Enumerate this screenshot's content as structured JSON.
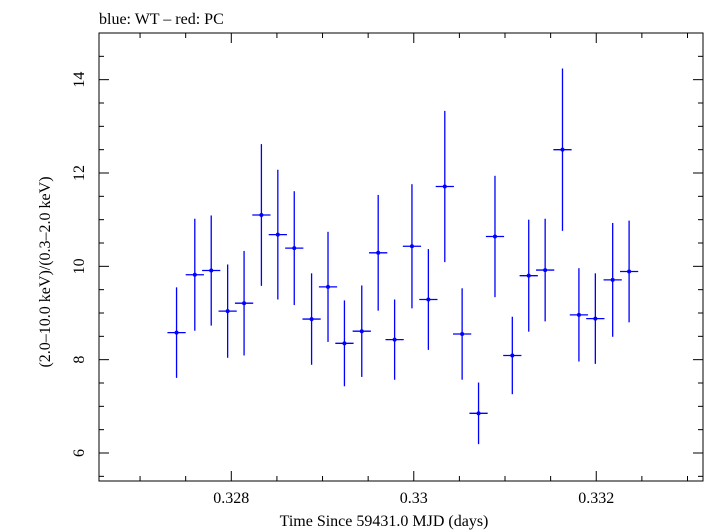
{
  "chart_data": {
    "type": "scatter",
    "title": "blue: WT – red: PC",
    "xlabel": "Time Since 59431.0 MJD (days)",
    "ylabel": "(2.0–10.0 keV)/(0.3–2.0 keV)",
    "xlim": [
      0.32655,
      0.33317
    ],
    "ylim": [
      5.4,
      15.0
    ],
    "x_ticks": [
      0.328,
      0.33,
      0.332
    ],
    "x_tick_labels": [
      "0.328",
      "0.33",
      "0.332"
    ],
    "y_ticks": [
      6,
      8,
      10,
      12,
      14
    ],
    "y_tick_labels": [
      "6",
      "8",
      "10",
      "12",
      "14"
    ],
    "grid": false,
    "series": [
      {
        "color": "#0000ff",
        "x_halfwidth": 0.0001,
        "points": [
          {
            "x": 0.3274,
            "y": 8.58,
            "err": 0.97
          },
          {
            "x": 0.3276,
            "y": 9.82,
            "err": 1.2
          },
          {
            "x": 0.32778,
            "y": 9.91,
            "err": 1.18
          },
          {
            "x": 0.32796,
            "y": 9.04,
            "err": 1.0
          },
          {
            "x": 0.32814,
            "y": 9.21,
            "err": 1.12
          },
          {
            "x": 0.32833,
            "y": 11.1,
            "err": 1.52
          },
          {
            "x": 0.32851,
            "y": 10.68,
            "err": 1.39
          },
          {
            "x": 0.32869,
            "y": 10.39,
            "err": 1.22
          },
          {
            "x": 0.32888,
            "y": 8.87,
            "err": 0.98
          },
          {
            "x": 0.32906,
            "y": 9.56,
            "err": 1.18
          },
          {
            "x": 0.32924,
            "y": 8.35,
            "err": 0.92
          },
          {
            "x": 0.32943,
            "y": 8.61,
            "err": 0.98
          },
          {
            "x": 0.32961,
            "y": 10.29,
            "err": 1.24
          },
          {
            "x": 0.32979,
            "y": 8.43,
            "err": 0.86
          },
          {
            "x": 0.32998,
            "y": 10.43,
            "err": 1.33
          },
          {
            "x": 0.33016,
            "y": 9.29,
            "err": 1.08
          },
          {
            "x": 0.33034,
            "y": 11.71,
            "err": 1.62
          },
          {
            "x": 0.33053,
            "y": 8.55,
            "err": 0.98
          },
          {
            "x": 0.33071,
            "y": 6.85,
            "err": 0.66
          },
          {
            "x": 0.33089,
            "y": 10.64,
            "err": 1.3
          },
          {
            "x": 0.33108,
            "y": 8.09,
            "err": 0.83
          },
          {
            "x": 0.33126,
            "y": 9.8,
            "err": 1.2
          },
          {
            "x": 0.33144,
            "y": 9.92,
            "err": 1.1
          },
          {
            "x": 0.33163,
            "y": 12.5,
            "err": 1.74
          },
          {
            "x": 0.33181,
            "y": 8.96,
            "err": 1.0
          },
          {
            "x": 0.33199,
            "y": 8.88,
            "err": 0.97
          },
          {
            "x": 0.33218,
            "y": 9.71,
            "err": 1.22
          },
          {
            "x": 0.33236,
            "y": 9.89,
            "err": 1.09
          }
        ]
      }
    ]
  }
}
